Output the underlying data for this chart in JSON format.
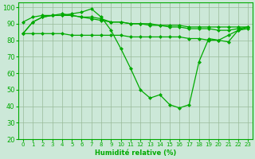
{
  "x": [
    0,
    1,
    2,
    3,
    4,
    5,
    6,
    7,
    8,
    9,
    10,
    11,
    12,
    13,
    14,
    15,
    16,
    17,
    18,
    19,
    20,
    21,
    22,
    23
  ],
  "line1": [
    84,
    91,
    94,
    95,
    95,
    96,
    97,
    99,
    94,
    86,
    75,
    63,
    50,
    45,
    47,
    41,
    39,
    41,
    67,
    81,
    80,
    83,
    86,
    87
  ],
  "line2": [
    91,
    94,
    95,
    95,
    96,
    95,
    94,
    93,
    92,
    91,
    91,
    90,
    90,
    90,
    89,
    89,
    89,
    88,
    88,
    88,
    88,
    88,
    88,
    88
  ],
  "line3": [
    84,
    91,
    94,
    95,
    95,
    95,
    94,
    94,
    93,
    91,
    91,
    90,
    90,
    89,
    89,
    88,
    88,
    87,
    87,
    87,
    86,
    86,
    87,
    88
  ],
  "line4": [
    84,
    84,
    84,
    84,
    84,
    83,
    83,
    83,
    83,
    83,
    83,
    82,
    82,
    82,
    82,
    82,
    82,
    81,
    81,
    80,
    80,
    79,
    86,
    88
  ],
  "line_color": "#00aa00",
  "bg_color": "#cce8d8",
  "grid_color": "#99bb99",
  "xlabel": "Humidité relative (%)",
  "ylim": [
    20,
    103
  ],
  "yticks": [
    20,
    30,
    40,
    50,
    60,
    70,
    80,
    90,
    100
  ],
  "xticks": [
    0,
    1,
    2,
    3,
    4,
    5,
    6,
    7,
    8,
    9,
    10,
    11,
    12,
    13,
    14,
    15,
    16,
    17,
    18,
    19,
    20,
    21,
    22,
    23
  ]
}
